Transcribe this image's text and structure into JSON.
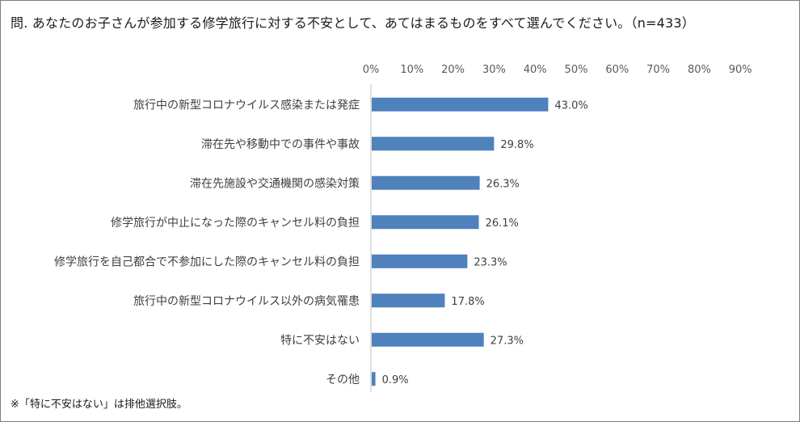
{
  "title": "問. あなたのお子さんが参加する修学旅行に対する不安として、あてはまるものをすべて選んでください。（n=433）",
  "note": "※「特に不安はない」は排他選択肢。",
  "chart_data": {
    "type": "bar",
    "orientation": "horizontal",
    "categories": [
      "旅行中の新型コロナウイルス感染または発症",
      "滞在先や移動中での事件や事故",
      "滞在先施設や交通機関の感染対策",
      "修学旅行が中止になった際のキャンセル料の負担",
      "修学旅行を自己都合で不参加にした際のキャンセル料の負担",
      "旅行中の新型コロナウイルス以外の病気罹患",
      "特に不安はない",
      "その他"
    ],
    "values": [
      43.0,
      29.8,
      26.3,
      26.1,
      23.3,
      17.8,
      27.3,
      0.9
    ],
    "value_labels": [
      "43.0%",
      "29.8%",
      "26.3%",
      "26.1%",
      "23.3%",
      "17.8%",
      "27.3%",
      "0.9%"
    ],
    "xlim": [
      0,
      90
    ],
    "x_ticks": [
      "0%",
      "10%",
      "20%",
      "30%",
      "40%",
      "50%",
      "60%",
      "70%",
      "80%",
      "90%"
    ],
    "axis_position": "top",
    "grid": false,
    "bar_color": "#4f81bd"
  }
}
